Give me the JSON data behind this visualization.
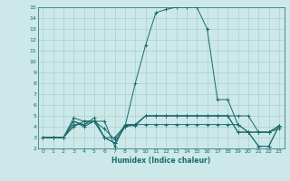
{
  "xlabel": "Humidex (Indice chaleur)",
  "bg_color": "#cce8e8",
  "grid_color": "#aad0d0",
  "line_color": "#1a6b6b",
  "xlim": [
    -0.5,
    23.5
  ],
  "ylim": [
    2,
    15
  ],
  "xticks": [
    0,
    1,
    2,
    3,
    4,
    5,
    6,
    7,
    8,
    9,
    10,
    11,
    12,
    13,
    14,
    15,
    16,
    17,
    18,
    19,
    20,
    21,
    22,
    23
  ],
  "yticks": [
    2,
    3,
    4,
    5,
    6,
    7,
    8,
    9,
    10,
    11,
    12,
    13,
    14,
    15
  ],
  "series": [
    [
      3.0,
      3.0,
      3.0,
      4.8,
      4.5,
      4.5,
      4.5,
      2.2,
      4.2,
      4.2,
      4.2,
      4.2,
      4.2,
      4.2,
      4.2,
      4.2,
      4.2,
      4.2,
      4.2,
      4.2,
      3.5,
      3.5,
      3.5,
      4.1
    ],
    [
      3.0,
      3.0,
      3.0,
      4.5,
      4.0,
      4.5,
      3.0,
      3.0,
      4.1,
      4.1,
      5.0,
      5.0,
      5.0,
      5.0,
      5.0,
      5.0,
      5.0,
      5.0,
      5.0,
      5.0,
      5.0,
      3.5,
      3.5,
      4.0
    ],
    [
      3.0,
      3.0,
      3.0,
      4.5,
      4.2,
      4.8,
      3.0,
      2.5,
      4.0,
      4.2,
      5.0,
      5.0,
      5.0,
      5.0,
      5.0,
      5.0,
      5.0,
      5.0,
      5.0,
      3.5,
      3.5,
      3.5,
      3.5,
      3.8
    ],
    [
      3.0,
      3.0,
      3.0,
      4.2,
      4.2,
      4.5,
      3.8,
      2.8,
      4.1,
      4.2,
      5.0,
      5.0,
      5.0,
      5.0,
      5.0,
      5.0,
      5.0,
      5.0,
      5.0,
      3.5,
      3.5,
      2.2,
      2.2,
      4.1
    ],
    [
      3.0,
      3.0,
      3.0,
      4.0,
      4.5,
      4.5,
      3.0,
      2.5,
      4.0,
      8.0,
      11.5,
      14.5,
      14.8,
      15.0,
      15.0,
      15.0,
      13.0,
      6.5,
      6.5,
      4.2,
      3.5,
      2.2,
      2.2,
      4.1
    ]
  ]
}
